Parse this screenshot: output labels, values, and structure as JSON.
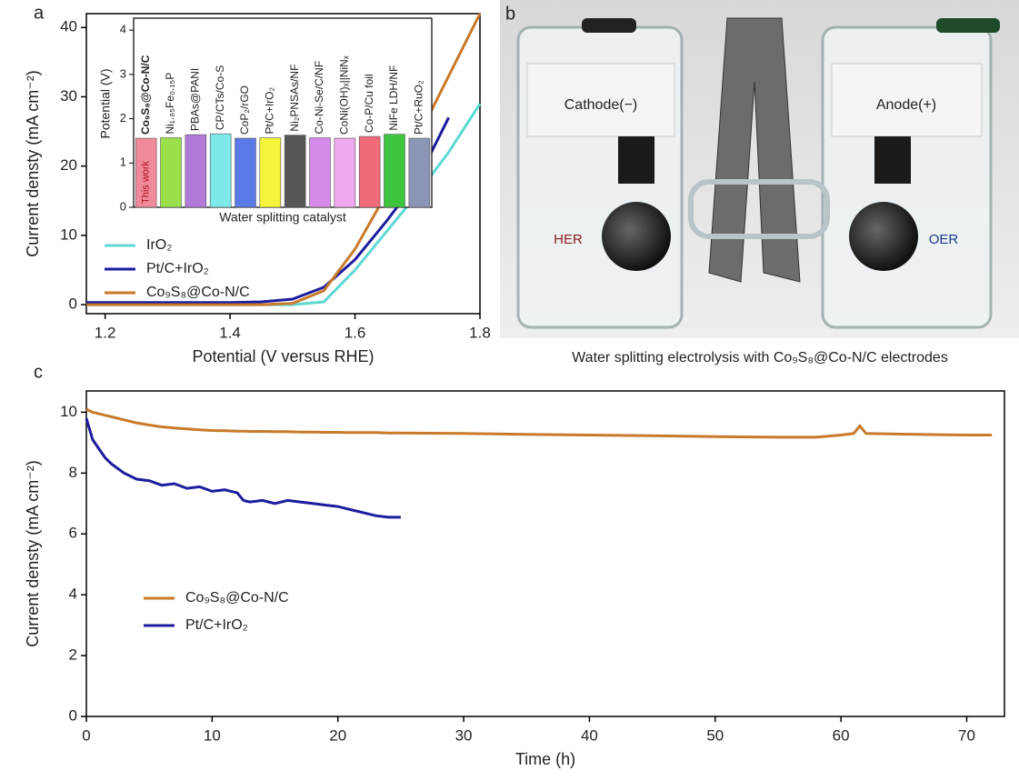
{
  "chart_data": [
    {
      "type": "line",
      "label": "a",
      "xlabel": "Potential (V versus RHE)",
      "ylabel": "Current densty (mA cm⁻²)",
      "x": [
        1.17,
        1.2,
        1.25,
        1.3,
        1.35,
        1.4,
        1.45,
        1.5,
        1.55,
        1.6,
        1.65,
        1.7,
        1.75,
        1.8
      ],
      "xlim": [
        1.17,
        1.8
      ],
      "xticks": [
        1.2,
        1.4,
        1.6,
        1.8
      ],
      "ylim": [
        -1.3,
        42
      ],
      "yticks": [
        0,
        10,
        20,
        30,
        40
      ],
      "legend": "lower-left",
      "series": [
        {
          "name": "IrO₂",
          "color": "#5ed8d2",
          "values": [
            0,
            0,
            0,
            0,
            0,
            0,
            0,
            0,
            0.4,
            5,
            10.5,
            16,
            22,
            29
          ]
        },
        {
          "name": "Pt/C+IrO₂",
          "color": "#1c1c9e",
          "values": [
            0.3,
            0.3,
            0.3,
            0.3,
            0.3,
            0.3,
            0.4,
            0.8,
            2.5,
            6.5,
            12,
            18,
            27,
            null
          ]
        },
        {
          "name": "Co₉S₈@Co-N/C",
          "color": "#c87a2a",
          "values": [
            0,
            0,
            0,
            0,
            0,
            0,
            0,
            0.2,
            2,
            8,
            16,
            24,
            33,
            42
          ]
        }
      ]
    },
    {
      "type": "bar",
      "xlabel": "Water splitting catalyst",
      "ylabel": "Potential (V)",
      "annotation": "This work",
      "categories": [
        "Co₉S₈@Co-N/C",
        "Ni₁.₈₅Fe₀.₁₅P",
        "PBAs@PANI",
        "CP/CTs/Co-S",
        "CoP₂/rGO",
        "Pt/C+IrO₂",
        "Ni₂PNSAs/NF",
        "Co-Ni-Se/C/NF",
        "CoNi(OH)ₓ||NiNₓ",
        "Co-P/Cu foil",
        "NiFe LDH/NF",
        "Pt/C+RuO₂"
      ],
      "values": [
        1.56,
        1.57,
        1.64,
        1.66,
        1.56,
        1.57,
        1.63,
        1.57,
        1.56,
        1.6,
        1.65,
        1.56
      ],
      "colors": [
        "#f08a9a",
        "#9be04a",
        "#b27ad8",
        "#7fe8e8",
        "#5a7ae8",
        "#f4f43a",
        "#555555",
        "#d48ae8",
        "#f0a8f0",
        "#f06a7a",
        "#3ec43e",
        "#8a96b4"
      ],
      "ylim": [
        0,
        4.27
      ],
      "yticks": [
        0,
        1,
        2,
        3,
        4
      ]
    },
    {
      "type": "line",
      "label": "c",
      "xlabel": "Time (h)",
      "ylabel": "Current densty (mA cm⁻²)",
      "x": [
        0,
        0.5,
        1,
        1.5,
        2,
        3,
        4,
        5,
        6,
        7,
        8,
        9,
        10,
        11,
        12,
        12.5,
        13,
        14,
        15,
        16,
        17,
        18,
        19,
        20,
        21,
        22,
        23,
        24,
        25,
        30,
        35,
        40,
        45,
        50,
        55,
        58,
        60,
        61,
        61.5,
        62,
        65,
        70,
        72
      ],
      "xlim": [
        0,
        73
      ],
      "xticks": [
        0,
        10,
        20,
        30,
        40,
        50,
        60,
        70
      ],
      "ylim": [
        0,
        10.7
      ],
      "yticks": [
        0,
        2,
        4,
        6,
        8,
        10
      ],
      "legend": "lower-left",
      "series": [
        {
          "name": "Co₉S₈@Co-N/C",
          "color": "#c87a2a",
          "values": [
            10.1,
            10,
            9.95,
            9.9,
            9.85,
            9.75,
            9.65,
            9.58,
            9.52,
            9.48,
            9.45,
            9.42,
            9.4,
            9.39,
            9.38,
            9.38,
            9.37,
            9.37,
            9.36,
            9.36,
            9.35,
            9.35,
            9.34,
            9.34,
            9.33,
            9.33,
            9.33,
            9.32,
            9.32,
            9.3,
            9.27,
            9.25,
            9.23,
            9.2,
            9.18,
            9.18,
            9.25,
            9.3,
            9.55,
            9.3,
            9.28,
            9.25,
            9.25
          ]
        },
        {
          "name": "Pt/C+IrO₂",
          "color": "#1c1c9e",
          "values": [
            9.8,
            9.1,
            8.8,
            8.5,
            8.3,
            8.0,
            7.8,
            7.75,
            7.6,
            7.65,
            7.5,
            7.55,
            7.4,
            7.45,
            7.35,
            7.1,
            7.05,
            7.1,
            7.0,
            7.1,
            7.05,
            7.0,
            6.95,
            6.9,
            6.8,
            6.7,
            6.6,
            6.55,
            6.55,
            null,
            null,
            null,
            null,
            null,
            null,
            null,
            null,
            null,
            null,
            null,
            null,
            null,
            null
          ]
        }
      ]
    }
  ],
  "photo": {
    "label": "b",
    "cathode": "Cathode(−)",
    "anode": "Anode(+)",
    "her": "HER",
    "oer": "OER",
    "caption": "Water splitting electrolysis with Co₉S₈@Co-N/C electrodes"
  }
}
